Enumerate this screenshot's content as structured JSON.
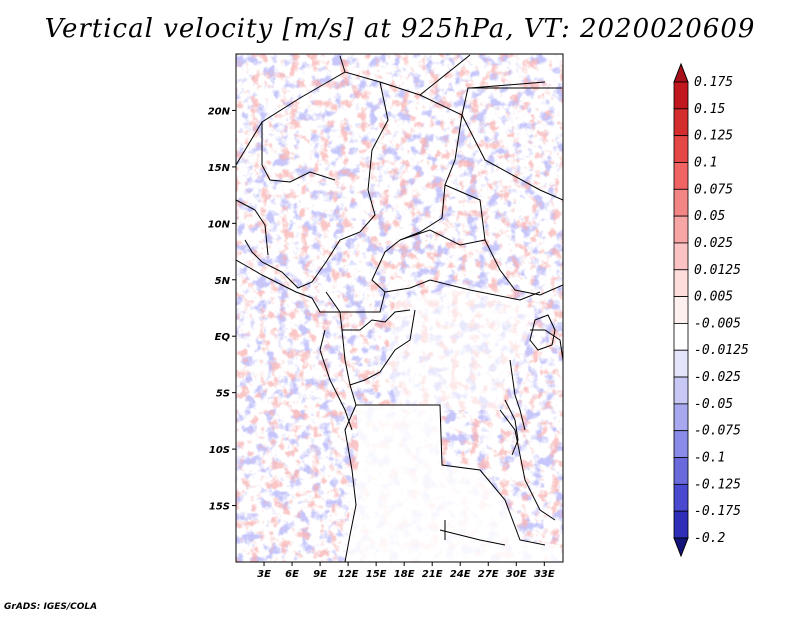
{
  "title": "Vertical velocity [m/s] at 925hPa, VT: 2020020609",
  "footer": "GrADS: IGES/COLA",
  "map": {
    "lon_range": [
      0,
      35
    ],
    "lat_range": [
      -20,
      25
    ],
    "lat_ticks": [
      {
        "value": 20,
        "label": "20N"
      },
      {
        "value": 15,
        "label": "15N"
      },
      {
        "value": 10,
        "label": "10N"
      },
      {
        "value": 5,
        "label": "5N"
      },
      {
        "value": 0,
        "label": "EQ"
      },
      {
        "value": -5,
        "label": "5S"
      },
      {
        "value": -10,
        "label": "10S"
      },
      {
        "value": -15,
        "label": "15S"
      }
    ],
    "lon_ticks": [
      {
        "value": 3,
        "label": "3E"
      },
      {
        "value": 6,
        "label": "6E"
      },
      {
        "value": 9,
        "label": "9E"
      },
      {
        "value": 12,
        "label": "12E"
      },
      {
        "value": 15,
        "label": "15E"
      },
      {
        "value": 18,
        "label": "18E"
      },
      {
        "value": 21,
        "label": "21E"
      },
      {
        "value": 24,
        "label": "24E"
      },
      {
        "value": 27,
        "label": "27E"
      },
      {
        "value": 30,
        "label": "30E"
      },
      {
        "value": 33,
        "label": "33E"
      }
    ]
  },
  "colorbar": {
    "levels": [
      {
        "label": "0.175",
        "color": "#c0181e"
      },
      {
        "label": "0.15",
        "color": "#d42d2d"
      },
      {
        "label": "0.125",
        "color": "#e54646"
      },
      {
        "label": "0.1",
        "color": "#f06464"
      },
      {
        "label": "0.075",
        "color": "#f48585"
      },
      {
        "label": "0.05",
        "color": "#f8a5a5"
      },
      {
        "label": "0.025",
        "color": "#fbc3c3"
      },
      {
        "label": "0.0125",
        "color": "#fddcdc"
      },
      {
        "label": "0.005",
        "color": "#fff0f0"
      },
      {
        "label": "-0.005",
        "color": "#ffffff"
      },
      {
        "label": "-0.0125",
        "color": "#e4e4fb"
      },
      {
        "label": "-0.025",
        "color": "#c8c8f5"
      },
      {
        "label": "-0.05",
        "color": "#a8a8f0"
      },
      {
        "label": "-0.075",
        "color": "#8a8ae8"
      },
      {
        "label": "-0.1",
        "color": "#6a6add"
      },
      {
        "label": "-0.125",
        "color": "#4a4ad0"
      },
      {
        "label": "-0.175",
        "color": "#2e2eb8"
      },
      {
        "label": "-0.2",
        "color": "#1a1a9a"
      }
    ],
    "top_color": "#a8101a",
    "bottom_color": "#14147a"
  }
}
